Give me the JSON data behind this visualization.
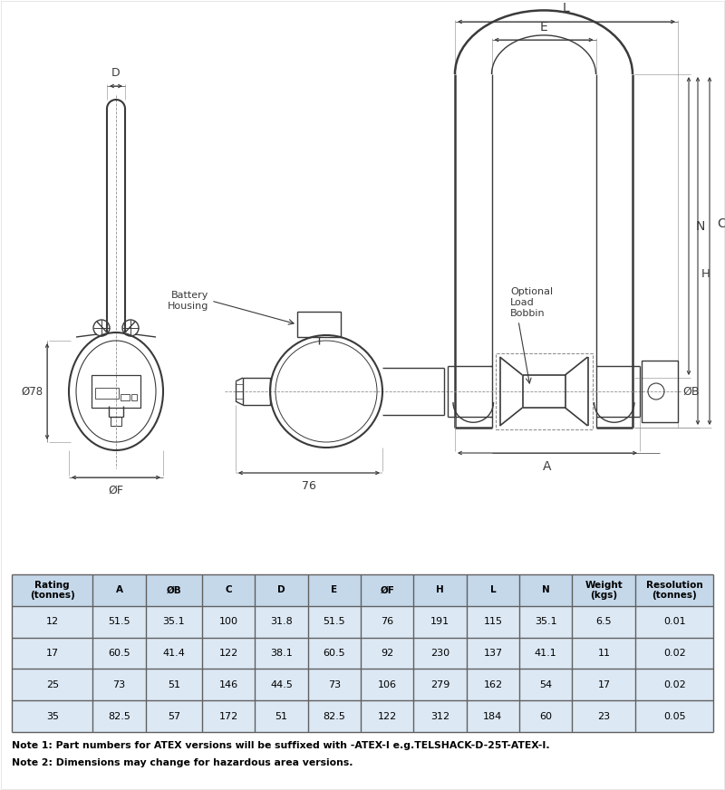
{
  "bg_color": "#ffffff",
  "line_color": "#3a3a3a",
  "table_header_bg": "#c5d8ea",
  "table_row_bg": "#dce8f4",
  "table_headers": [
    "Rating\n(tonnes)",
    "A",
    "ØB",
    "C",
    "D",
    "E",
    "ØF",
    "H",
    "L",
    "N",
    "Weight\n(kgs)",
    "Resolution\n(tonnes)"
  ],
  "table_data": [
    [
      "12",
      "51.5",
      "35.1",
      "100",
      "31.8",
      "51.5",
      "76",
      "191",
      "115",
      "35.1",
      "6.5",
      "0.01"
    ],
    [
      "17",
      "60.5",
      "41.4",
      "122",
      "38.1",
      "60.5",
      "92",
      "230",
      "137",
      "41.1",
      "11",
      "0.02"
    ],
    [
      "25",
      "73",
      "51",
      "146",
      "44.5",
      "73",
      "106",
      "279",
      "162",
      "54",
      "17",
      "0.02"
    ],
    [
      "35",
      "82.5",
      "57",
      "172",
      "51",
      "82.5",
      "122",
      "312",
      "184",
      "60",
      "23",
      "0.05"
    ]
  ],
  "note1": "Note 1: Part numbers for ATEX versions will be suffixed with -ATEX-I e.g.TELSHACK-D-25T-ATEX-I.",
  "note2": "Note 2: Dimensions may change for hazardous area versions.",
  "col_widths_rel": [
    1.15,
    0.75,
    0.8,
    0.75,
    0.75,
    0.75,
    0.75,
    0.75,
    0.75,
    0.75,
    0.9,
    1.1
  ]
}
